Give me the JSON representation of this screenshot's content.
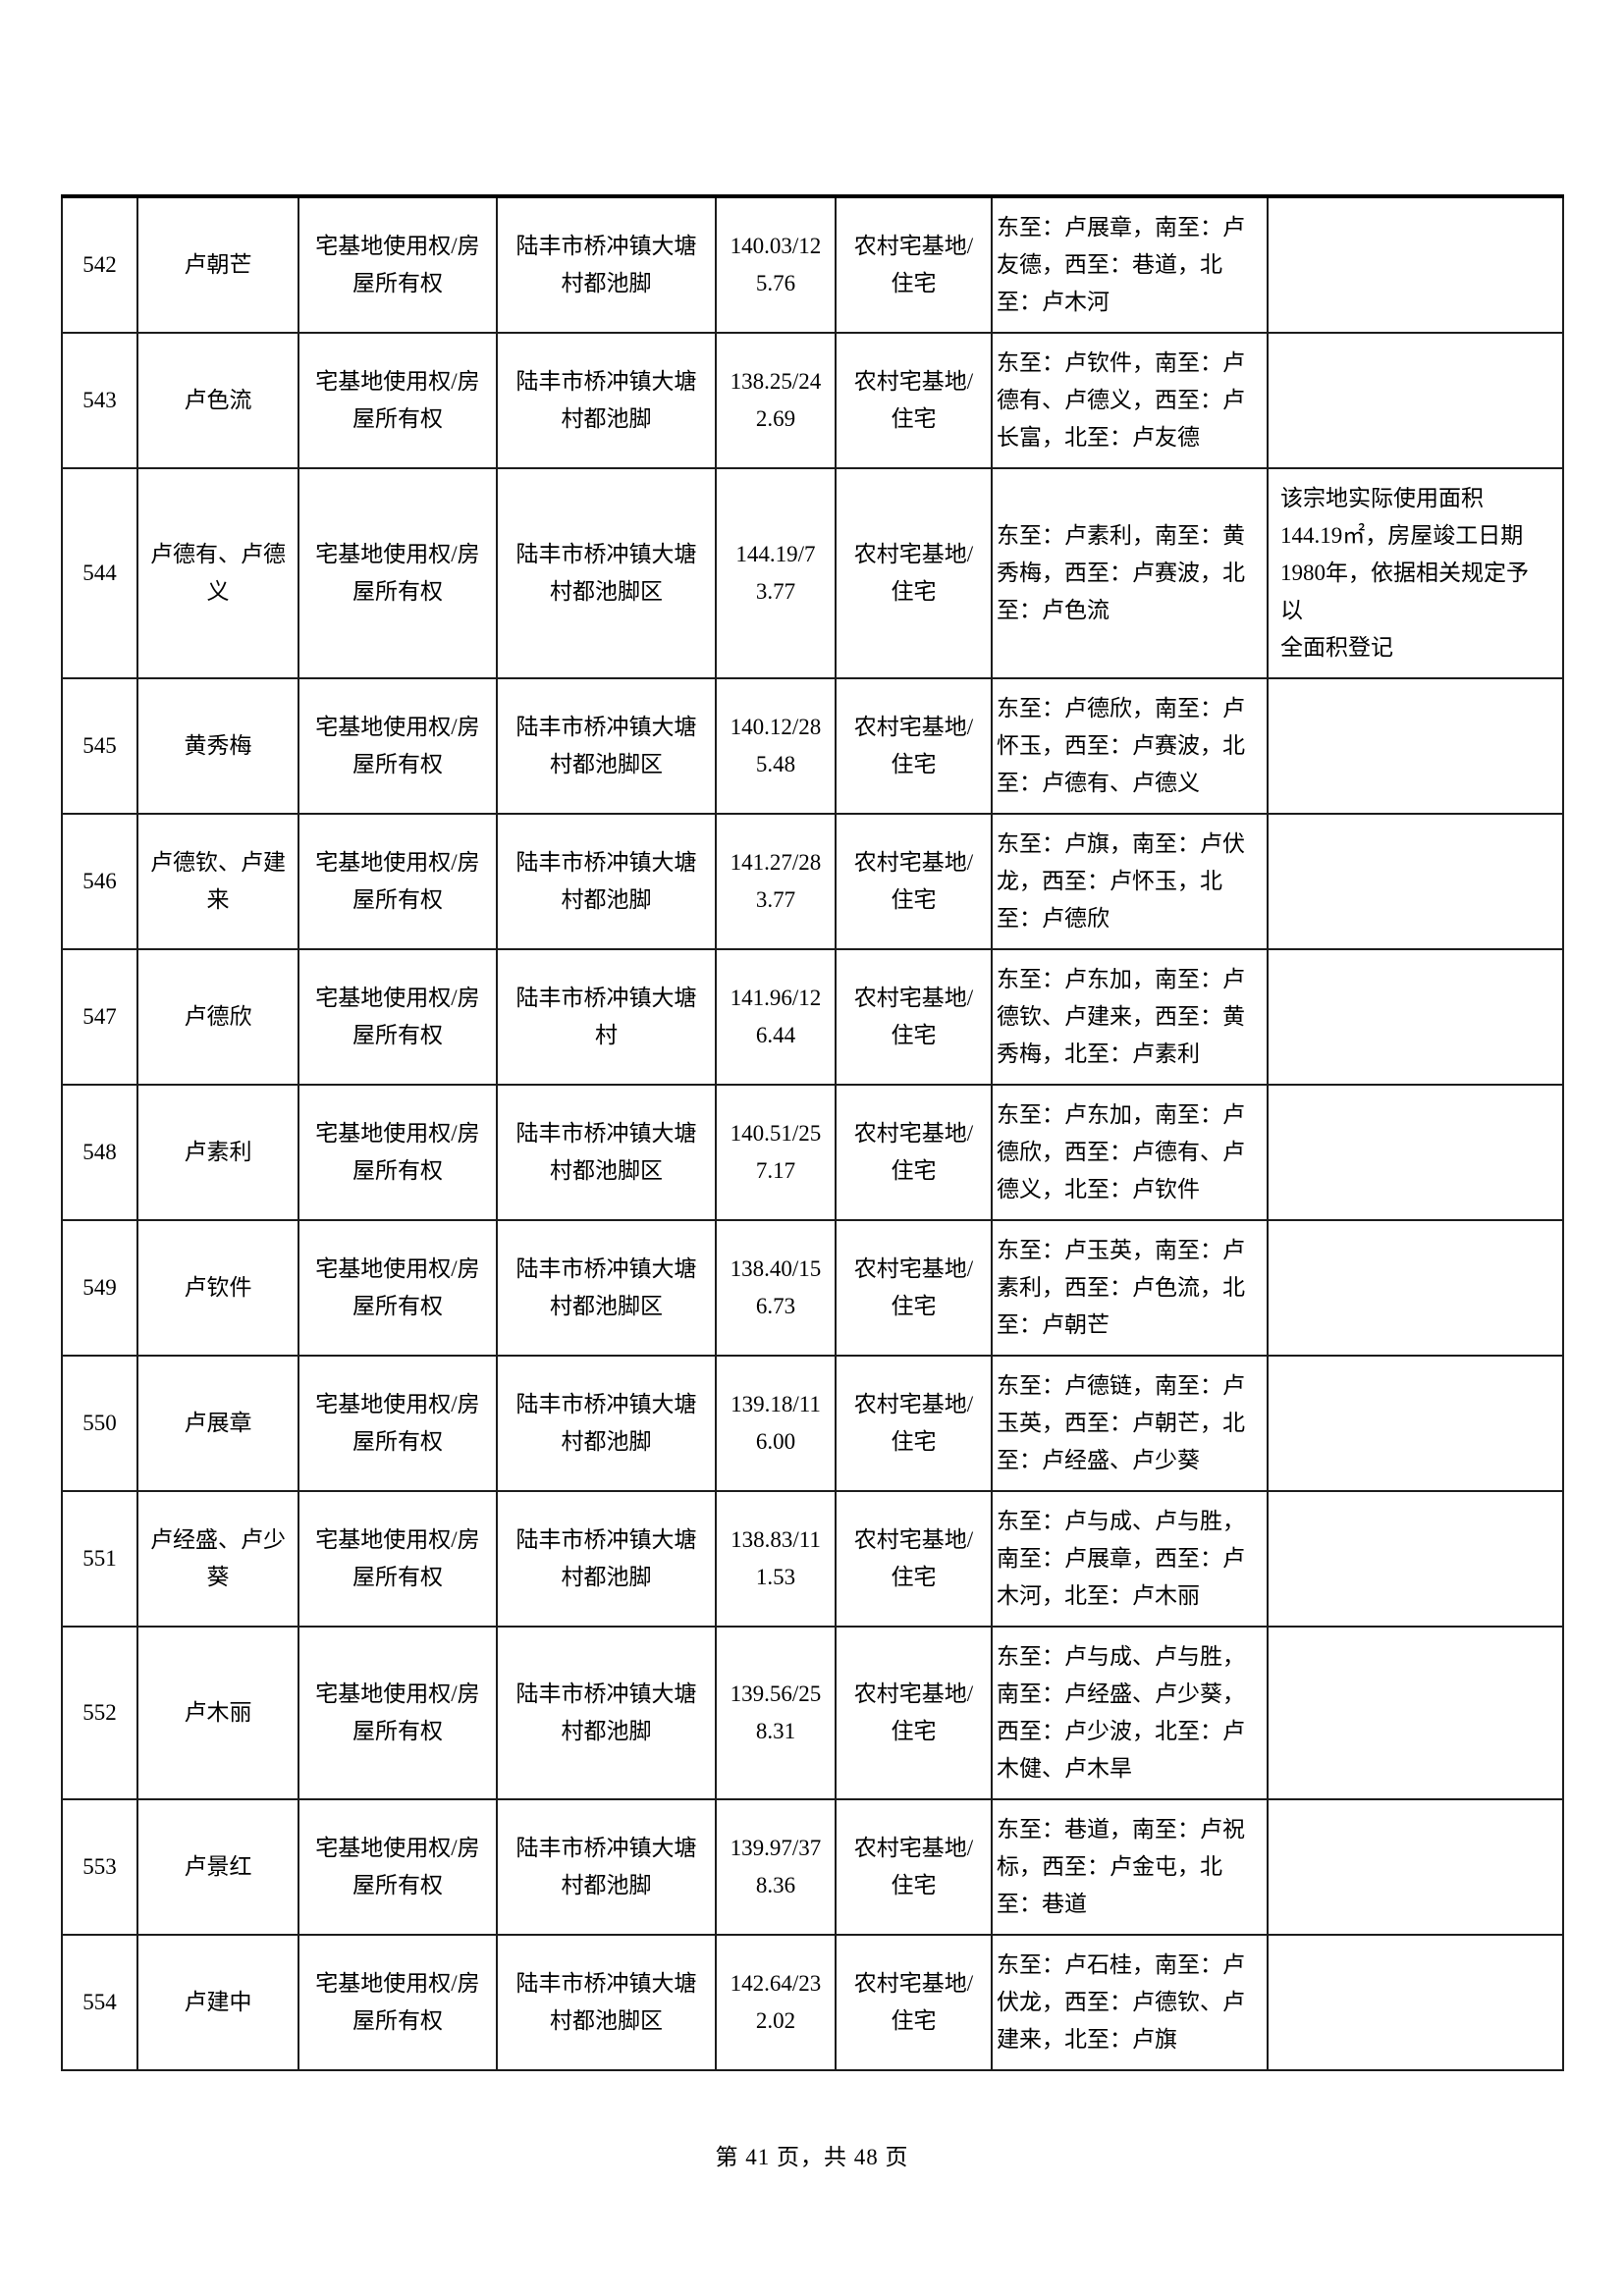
{
  "footer": {
    "text": "第 41 页，共 48 页"
  },
  "table": {
    "rows": [
      {
        "no": "542",
        "owner": "卢朝芒",
        "right_type": "宅基地使用权/房屋所有权",
        "location": "陆丰市桥冲镇大塘村都池脚",
        "area": "140.03/125.76",
        "usage": "农村宅基地/住宅",
        "boundaries": "东至：卢展章，南至：卢友德，西至：巷道，北至：卢木河",
        "remark": ""
      },
      {
        "no": "543",
        "owner": "卢色流",
        "right_type": "宅基地使用权/房屋所有权",
        "location": "陆丰市桥冲镇大塘村都池脚",
        "area": "138.25/242.69",
        "usage": "农村宅基地/住宅",
        "boundaries": "东至：卢钦件，南至：卢德有、卢德义，西至：卢长富，北至：卢友德",
        "remark": ""
      },
      {
        "no": "544",
        "owner": "卢德有、卢德义",
        "right_type": "宅基地使用权/房屋所有权",
        "location": "陆丰市桥冲镇大塘村都池脚区",
        "area": "144.19/73.77",
        "usage": "农村宅基地/住宅",
        "boundaries": "东至：卢素利，南至：黄秀梅，西至：卢赛波，北至：卢色流",
        "remark": "该宗地实际使用面积\n144.19㎡，房屋竣工日期\n1980年，依据相关规定予以\n全面积登记"
      },
      {
        "no": "545",
        "owner": "黄秀梅",
        "right_type": "宅基地使用权/房屋所有权",
        "location": "陆丰市桥冲镇大塘村都池脚区",
        "area": "140.12/285.48",
        "usage": "农村宅基地/住宅",
        "boundaries": "东至：卢德欣，南至：卢怀玉，西至：卢赛波，北至：卢德有、卢德义",
        "remark": ""
      },
      {
        "no": "546",
        "owner": "卢德钦、卢建来",
        "right_type": "宅基地使用权/房屋所有权",
        "location": "陆丰市桥冲镇大塘村都池脚",
        "area": "141.27/283.77",
        "usage": "农村宅基地/住宅",
        "boundaries": "东至：卢旗，南至：卢伏龙，西至：卢怀玉，北至：卢德欣",
        "remark": ""
      },
      {
        "no": "547",
        "owner": "卢德欣",
        "right_type": "宅基地使用权/房屋所有权",
        "location": "陆丰市桥冲镇大塘村",
        "area": "141.96/126.44",
        "usage": "农村宅基地/住宅",
        "boundaries": "东至：卢东加，南至：卢德钦、卢建来，西至：黄秀梅，北至：卢素利",
        "remark": ""
      },
      {
        "no": "548",
        "owner": "卢素利",
        "right_type": "宅基地使用权/房屋所有权",
        "location": "陆丰市桥冲镇大塘村都池脚区",
        "area": "140.51/257.17",
        "usage": "农村宅基地/住宅",
        "boundaries": "东至：卢东加，南至：卢德欣，西至：卢德有、卢德义，北至：卢钦件",
        "remark": ""
      },
      {
        "no": "549",
        "owner": "卢钦件",
        "right_type": "宅基地使用权/房屋所有权",
        "location": "陆丰市桥冲镇大塘村都池脚区",
        "area": "138.40/156.73",
        "usage": "农村宅基地/住宅",
        "boundaries": "东至：卢玉英，南至：卢素利，西至：卢色流，北至：卢朝芒",
        "remark": ""
      },
      {
        "no": "550",
        "owner": "卢展章",
        "right_type": "宅基地使用权/房屋所有权",
        "location": "陆丰市桥冲镇大塘村都池脚",
        "area": "139.18/116.00",
        "usage": "农村宅基地/住宅",
        "boundaries": "东至：卢德链，南至：卢玉英，西至：卢朝芒，北至：卢经盛、卢少葵",
        "remark": ""
      },
      {
        "no": "551",
        "owner": "卢经盛、卢少葵",
        "right_type": "宅基地使用权/房屋所有权",
        "location": "陆丰市桥冲镇大塘村都池脚",
        "area": "138.83/111.53",
        "usage": "农村宅基地/住宅",
        "boundaries": "东至：卢与成、卢与胜，南至：卢展章，西至：卢木河，北至：卢木丽",
        "remark": ""
      },
      {
        "no": "552",
        "owner": "卢木丽",
        "right_type": "宅基地使用权/房屋所有权",
        "location": "陆丰市桥冲镇大塘村都池脚",
        "area": "139.56/258.31",
        "usage": "农村宅基地/住宅",
        "boundaries": "东至：卢与成、卢与胜，南至：卢经盛、卢少葵，西至：卢少波，北至：卢木健、卢木旱",
        "remark": ""
      },
      {
        "no": "553",
        "owner": "卢景红",
        "right_type": "宅基地使用权/房屋所有权",
        "location": "陆丰市桥冲镇大塘村都池脚",
        "area": "139.97/378.36",
        "usage": "农村宅基地/住宅",
        "boundaries": "东至：巷道，南至：卢祝标，西至：卢金屯，北至：巷道",
        "remark": ""
      },
      {
        "no": "554",
        "owner": "卢建中",
        "right_type": "宅基地使用权/房屋所有权",
        "location": "陆丰市桥冲镇大塘村都池脚区",
        "area": "142.64/232.02",
        "usage": "农村宅基地/住宅",
        "boundaries": "东至：卢石桂，南至：卢伏龙，西至：卢德钦、卢建来，北至：卢旗",
        "remark": ""
      }
    ]
  }
}
